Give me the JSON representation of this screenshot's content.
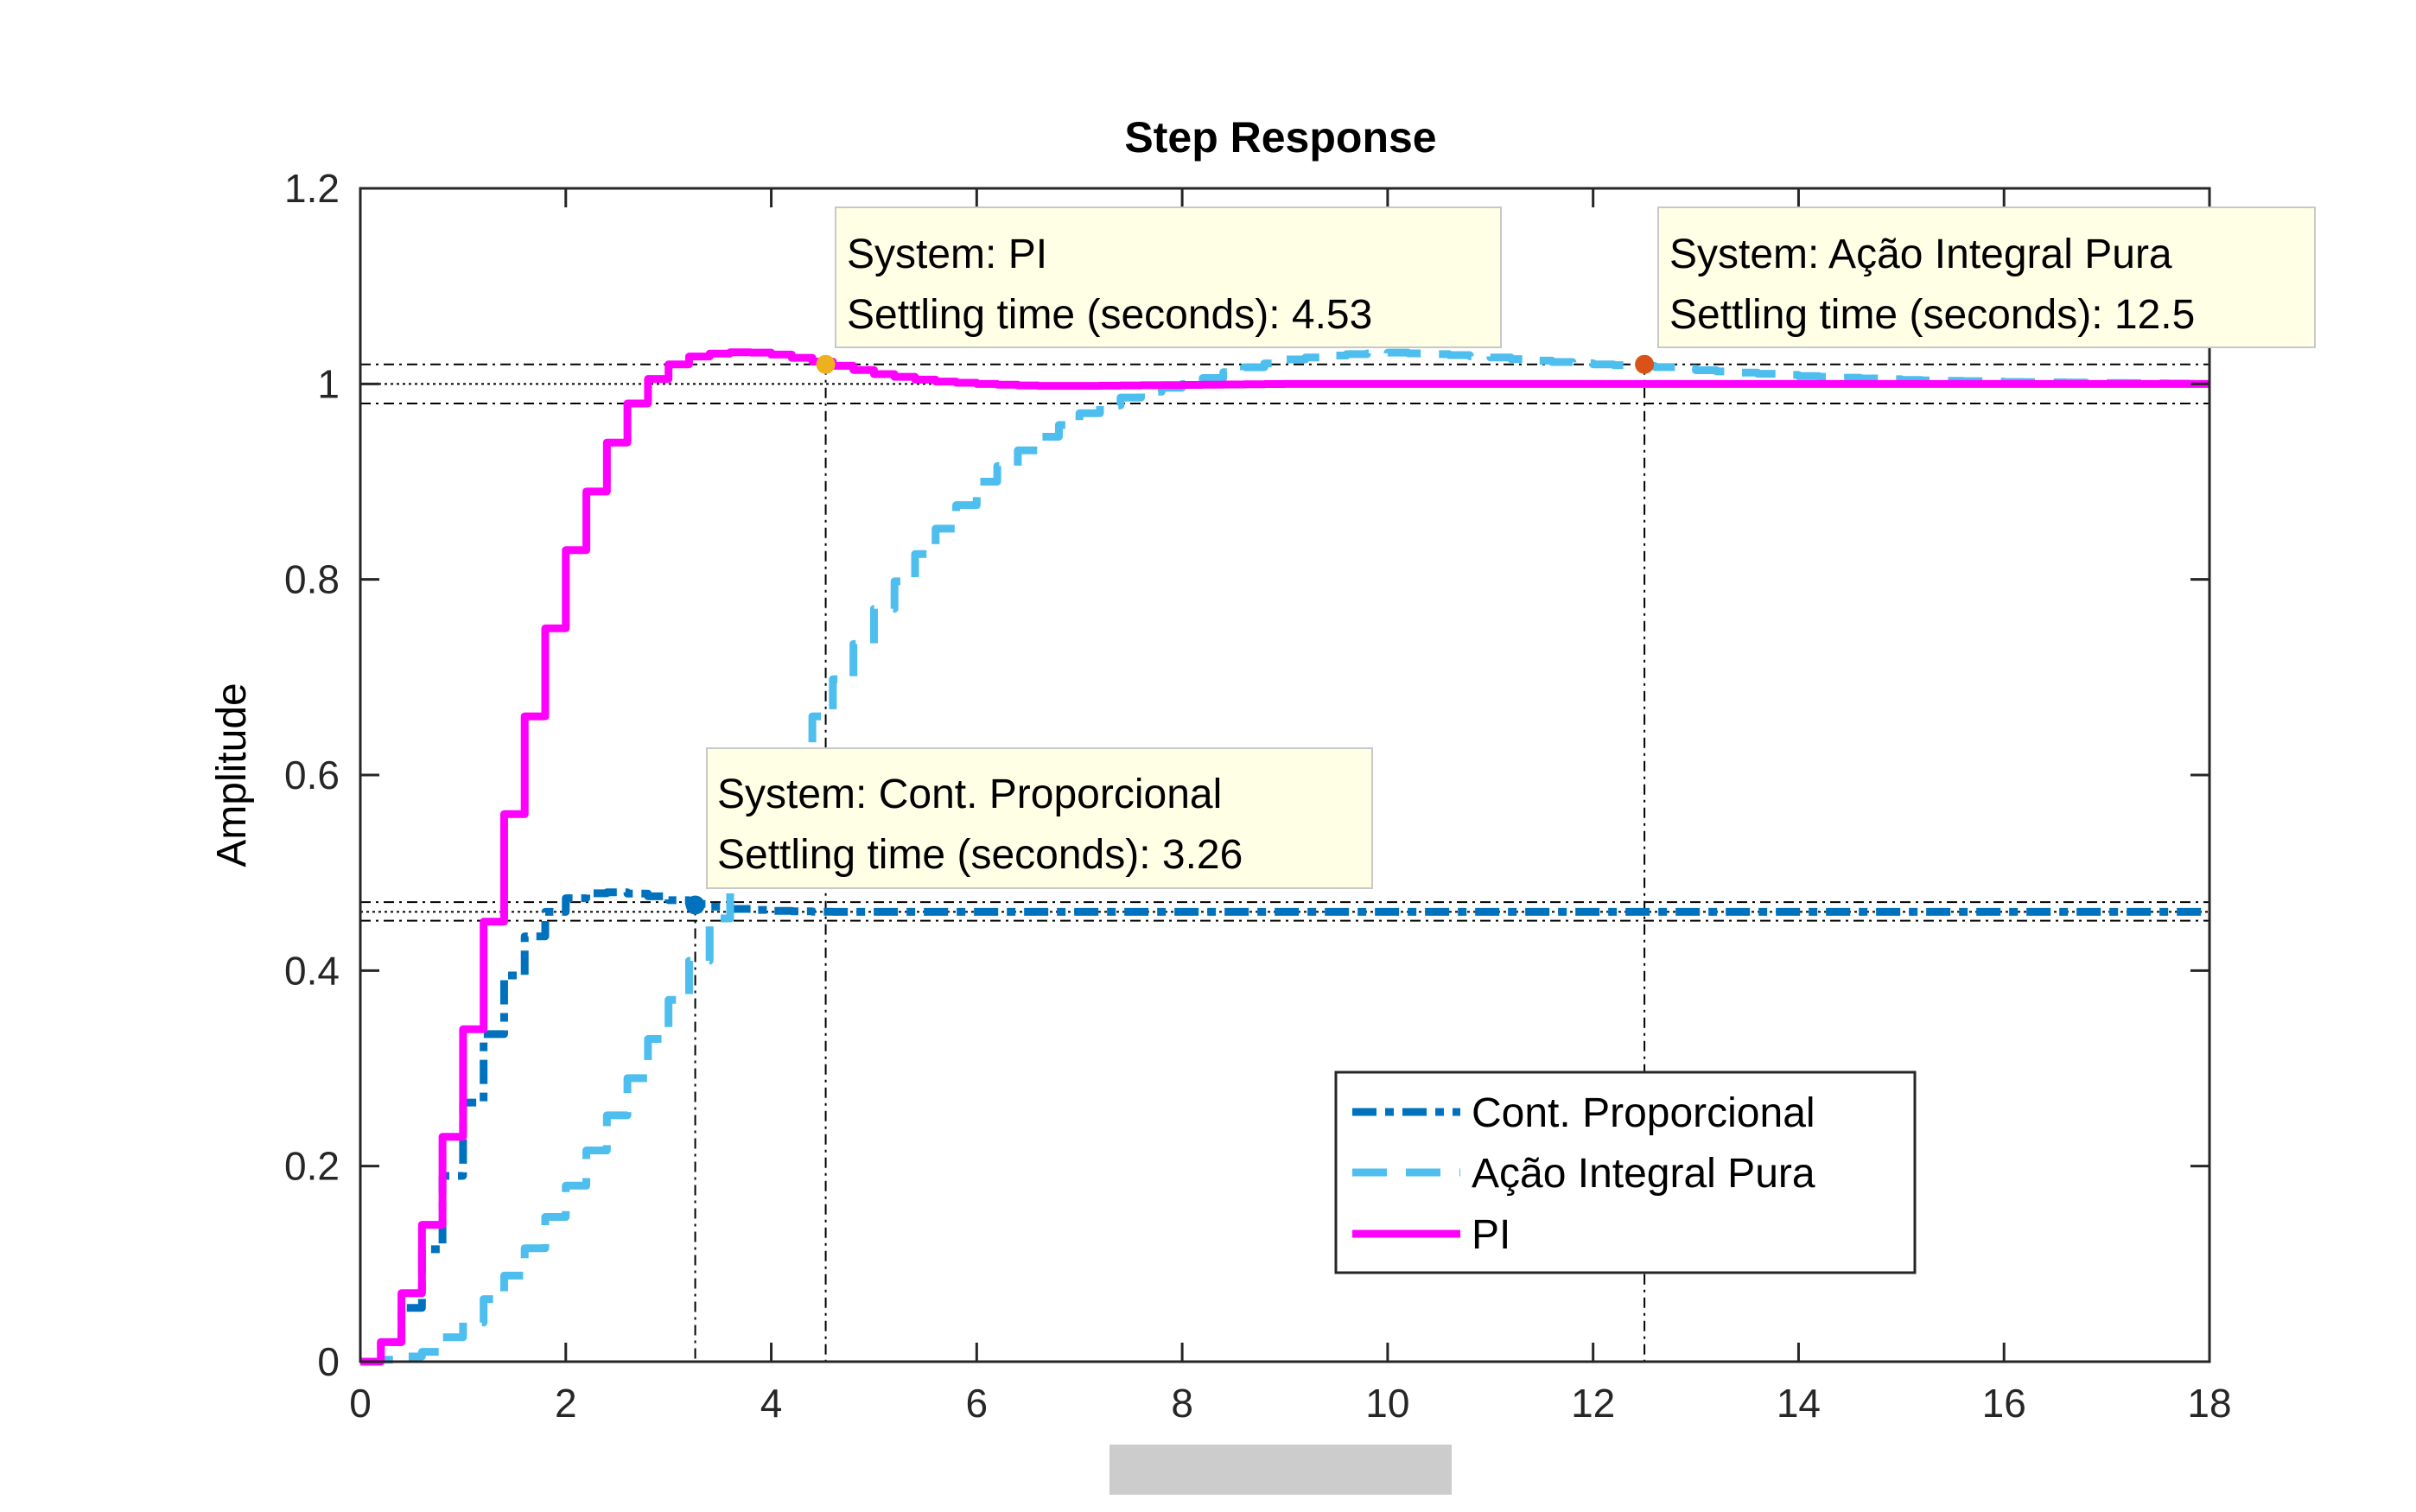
{
  "chart_data": {
    "type": "line",
    "title": "Step Response",
    "xlabel": "",
    "ylabel": "Amplitude",
    "xlim": [
      0,
      18
    ],
    "ylim": [
      0,
      1.2
    ],
    "xticks": [
      0,
      2,
      4,
      6,
      8,
      10,
      12,
      14,
      16,
      18
    ],
    "yticks": [
      0,
      0.2,
      0.4,
      0.6,
      0.8,
      1,
      1.2
    ],
    "xtick_labels": [
      "0",
      "2",
      "4",
      "6",
      "8",
      "10",
      "12",
      "14",
      "16",
      "18"
    ],
    "ytick_labels": [
      "0",
      "0.2",
      "0.4",
      "0.6",
      "0.8",
      "1",
      "1.2"
    ],
    "grid": false,
    "legend_position": "bottom-right",
    "series": [
      {
        "name": "Cont. Proporcional",
        "color": "#0072BD",
        "style": "dash-dot",
        "x": [
          0,
          0.3,
          0.5,
          0.7,
          0.9,
          1.1,
          1.3,
          1.5,
          1.7,
          1.9,
          2.1,
          2.3,
          2.5,
          2.8,
          3.0,
          3.26,
          3.6,
          4.0,
          4.5,
          5,
          6,
          8,
          10,
          12,
          14,
          16,
          18
        ],
        "y": [
          0,
          0.03,
          0.08,
          0.15,
          0.23,
          0.3,
          0.37,
          0.42,
          0.45,
          0.47,
          0.478,
          0.48,
          0.48,
          0.476,
          0.472,
          0.467,
          0.463,
          0.461,
          0.46,
          0.46,
          0.46,
          0.46,
          0.46,
          0.46,
          0.46,
          0.46,
          0.46
        ]
      },
      {
        "name": "Ação Integral Pura",
        "color": "#4DBEEE",
        "style": "dashed",
        "x": [
          0,
          0.3,
          0.6,
          1.0,
          1.5,
          2.0,
          2.5,
          3.0,
          3.3,
          3.6,
          4.0,
          4.5,
          5.0,
          5.5,
          6.0,
          6.5,
          7.0,
          7.5,
          8.0,
          8.5,
          9.0,
          9.5,
          10.0,
          10.5,
          11.0,
          11.5,
          12.0,
          12.5,
          13.0,
          14.0,
          15.0,
          16.0,
          17.0,
          18.0
        ],
        "y": [
          0,
          0.003,
          0.01,
          0.04,
          0.1,
          0.18,
          0.27,
          0.37,
          0.43,
          0.5,
          0.58,
          0.68,
          0.77,
          0.84,
          0.9,
          0.94,
          0.97,
          0.99,
          1.0,
          1.015,
          1.025,
          1.03,
          1.032,
          1.03,
          1.027,
          1.023,
          1.02,
          1.018,
          1.014,
          1.008,
          1.004,
          1.002,
          1.001,
          1.0
        ]
      },
      {
        "name": "PI",
        "color": "#FF00FF",
        "style": "solid",
        "x": [
          0,
          0.2,
          0.4,
          0.6,
          0.8,
          1.0,
          1.2,
          1.4,
          1.6,
          1.8,
          2.0,
          2.2,
          2.4,
          2.6,
          2.8,
          3.0,
          3.2,
          3.4,
          3.7,
          4.0,
          4.3,
          4.53,
          5.0,
          5.5,
          6.0,
          6.5,
          7.0,
          8.0,
          9.0,
          10.0,
          12.0,
          14.0,
          16.0,
          18.0
        ],
        "y": [
          0,
          0.02,
          0.07,
          0.14,
          0.23,
          0.34,
          0.45,
          0.56,
          0.66,
          0.75,
          0.83,
          0.89,
          0.94,
          0.98,
          1.005,
          1.02,
          1.028,
          1.031,
          1.033,
          1.03,
          1.025,
          1.02,
          1.01,
          1.003,
          1.0,
          0.998,
          0.998,
          0.999,
          1.0,
          1.0,
          1.0,
          1.0,
          1.0,
          1.0
        ]
      }
    ],
    "settling_bands": [
      {
        "center": 1.0,
        "upper": 1.02,
        "lower": 0.98
      },
      {
        "center": 0.46,
        "upper": 0.47,
        "lower": 0.451
      }
    ],
    "markers": [
      {
        "x": 4.53,
        "y": 1.02,
        "color": "#EDB120"
      },
      {
        "x": 12.5,
        "y": 1.02,
        "color": "#D95319"
      },
      {
        "x": 3.26,
        "y": 0.467,
        "color": "#0072BD"
      }
    ],
    "annotations": [
      {
        "lines": [
          "System: PI",
          "Settling time (seconds): 4.53"
        ],
        "anchor_x": 4.53
      },
      {
        "lines": [
          "System: Ação Integral Pura",
          "Settling time (seconds): 12.5"
        ],
        "anchor_x": 12.5
      },
      {
        "lines": [
          "System: Cont. Proporcional",
          "Settling time (seconds): 3.26"
        ],
        "anchor_x": 3.26
      }
    ]
  }
}
